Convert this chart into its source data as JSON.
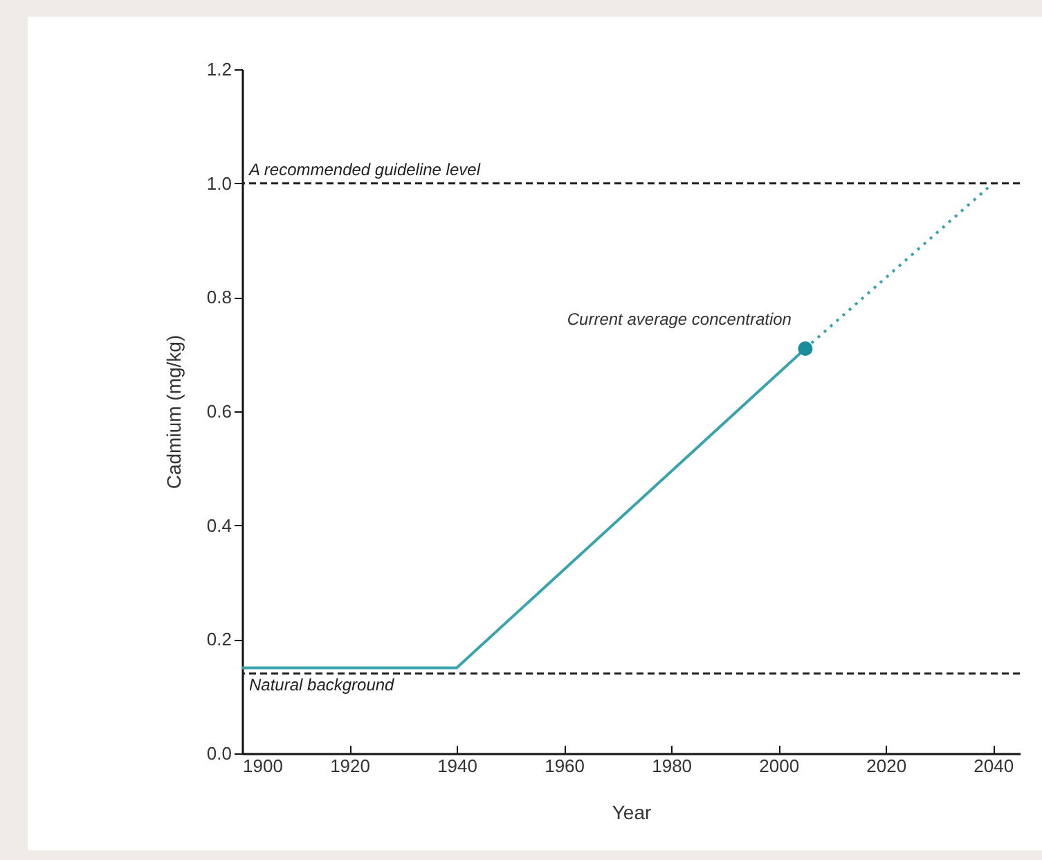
{
  "chart_data": {
    "type": "line",
    "xlabel": "Year",
    "ylabel": "Cadmium (mg/kg)",
    "xlim": [
      1900,
      2045
    ],
    "xticks": [
      1900,
      1920,
      1940,
      1960,
      1980,
      2000,
      2020,
      2040
    ],
    "ylim": [
      0,
      1.2
    ],
    "yticks": [
      {
        "value": 0,
        "label": "0.0"
      },
      0.2,
      0.4,
      0.6,
      0.8,
      {
        "value": 1,
        "label": "1.0"
      },
      1.2
    ],
    "grid": false,
    "series": [
      {
        "color": "#3aa3ad",
        "x": [
          1900,
          1940,
          2005
        ],
        "values": [
          0.15,
          0.15,
          0.71
        ],
        "line_style": "solid"
      },
      {
        "color": "#3aa3ad",
        "x": [
          2005,
          2040
        ],
        "values": [
          0.71,
          1.0
        ],
        "line_style": "dotted"
      },
      {
        "type": "scatter",
        "color": "#1a8d9a",
        "x": [
          2005
        ],
        "values": [
          0.71
        ],
        "marker": "circle"
      }
    ],
    "ref_lines": [
      {
        "axis": "y",
        "value": 1.0,
        "label": "A recommended guideline level",
        "color": "#222222",
        "line_style": "dashed"
      },
      {
        "axis": "y",
        "value": 0.14,
        "label": "Natural background",
        "color": "#222222",
        "line_style": "dashed"
      }
    ],
    "annotations": [
      {
        "text": "Current average concentration",
        "x": 2005,
        "y": 0.71
      }
    ]
  }
}
